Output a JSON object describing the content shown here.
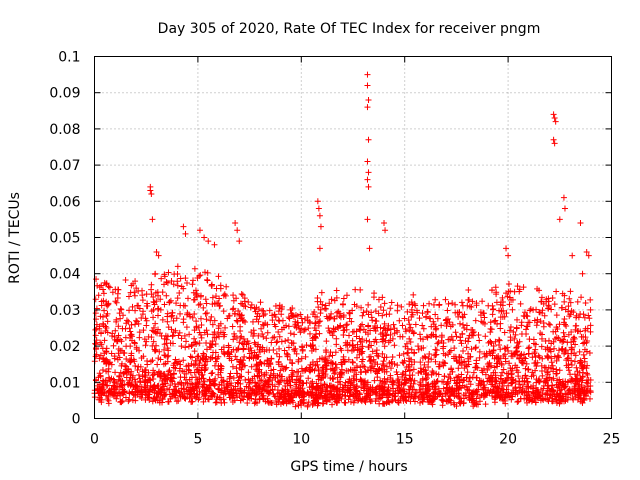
{
  "chart_data": {
    "type": "scatter",
    "title": "Day 305 of 2020, Rate Of TEC Index for receiver pngm",
    "xlabel": "GPS time / hours",
    "ylabel": "ROTI / TECUs",
    "xlim": [
      0,
      25
    ],
    "ylim": [
      0,
      0.1
    ],
    "x_ticks": [
      0,
      5,
      10,
      15,
      20,
      25
    ],
    "x_tick_labels": [
      "0",
      "5",
      "10",
      "15",
      "20",
      "25"
    ],
    "y_ticks": [
      0,
      0.01,
      0.02,
      0.03,
      0.04,
      0.05,
      0.06,
      0.07,
      0.08,
      0.09,
      0.1
    ],
    "y_tick_labels": [
      "0",
      "0.01",
      "0.02",
      "0.03",
      "0.04",
      "0.05",
      "0.06",
      "0.07",
      "0.08",
      "0.09",
      "0.1"
    ],
    "grid": true,
    "marker": "+",
    "color": "#ff0000",
    "series_note": "dense background of ROTI values between about 0.003 and 0.035 TECU spanning 0 to 24 h",
    "background": {
      "x_range": [
        0,
        24
      ],
      "profile": [
        {
          "x": 0,
          "base": 0.004,
          "peak": 0.038
        },
        {
          "x": 2,
          "base": 0.004,
          "peak": 0.035
        },
        {
          "x": 4,
          "base": 0.004,
          "peak": 0.04
        },
        {
          "x": 6,
          "base": 0.004,
          "peak": 0.037
        },
        {
          "x": 8,
          "base": 0.004,
          "peak": 0.03
        },
        {
          "x": 10,
          "base": 0.003,
          "peak": 0.028
        },
        {
          "x": 12,
          "base": 0.004,
          "peak": 0.035
        },
        {
          "x": 14,
          "base": 0.004,
          "peak": 0.032
        },
        {
          "x": 16,
          "base": 0.004,
          "peak": 0.03
        },
        {
          "x": 18,
          "base": 0.003,
          "peak": 0.033
        },
        {
          "x": 20,
          "base": 0.004,
          "peak": 0.035
        },
        {
          "x": 22,
          "base": 0.004,
          "peak": 0.033
        },
        {
          "x": 24,
          "base": 0.004,
          "peak": 0.03
        }
      ]
    },
    "notable_points": [
      {
        "x": 2.7,
        "y": 0.064
      },
      {
        "x": 2.7,
        "y": 0.063
      },
      {
        "x": 2.75,
        "y": 0.062
      },
      {
        "x": 2.8,
        "y": 0.055
      },
      {
        "x": 3.0,
        "y": 0.046
      },
      {
        "x": 3.1,
        "y": 0.045
      },
      {
        "x": 4.3,
        "y": 0.053
      },
      {
        "x": 4.4,
        "y": 0.051
      },
      {
        "x": 5.1,
        "y": 0.052
      },
      {
        "x": 5.3,
        "y": 0.05
      },
      {
        "x": 5.5,
        "y": 0.049
      },
      {
        "x": 5.8,
        "y": 0.048
      },
      {
        "x": 6.8,
        "y": 0.054
      },
      {
        "x": 6.9,
        "y": 0.052
      },
      {
        "x": 7.0,
        "y": 0.049
      },
      {
        "x": 10.8,
        "y": 0.06
      },
      {
        "x": 10.85,
        "y": 0.058
      },
      {
        "x": 10.9,
        "y": 0.056
      },
      {
        "x": 10.95,
        "y": 0.053
      },
      {
        "x": 10.9,
        "y": 0.047
      },
      {
        "x": 13.2,
        "y": 0.095
      },
      {
        "x": 13.2,
        "y": 0.092
      },
      {
        "x": 13.25,
        "y": 0.088
      },
      {
        "x": 13.2,
        "y": 0.086
      },
      {
        "x": 13.25,
        "y": 0.077
      },
      {
        "x": 13.2,
        "y": 0.071
      },
      {
        "x": 13.25,
        "y": 0.068
      },
      {
        "x": 13.2,
        "y": 0.066
      },
      {
        "x": 13.25,
        "y": 0.064
      },
      {
        "x": 13.2,
        "y": 0.055
      },
      {
        "x": 13.3,
        "y": 0.047
      },
      {
        "x": 14.0,
        "y": 0.054
      },
      {
        "x": 14.05,
        "y": 0.052
      },
      {
        "x": 19.9,
        "y": 0.047
      },
      {
        "x": 20.0,
        "y": 0.045
      },
      {
        "x": 22.2,
        "y": 0.084
      },
      {
        "x": 22.25,
        "y": 0.083
      },
      {
        "x": 22.3,
        "y": 0.082
      },
      {
        "x": 22.2,
        "y": 0.077
      },
      {
        "x": 22.25,
        "y": 0.076
      },
      {
        "x": 22.5,
        "y": 0.055
      },
      {
        "x": 22.7,
        "y": 0.061
      },
      {
        "x": 22.75,
        "y": 0.058
      },
      {
        "x": 23.1,
        "y": 0.045
      },
      {
        "x": 23.5,
        "y": 0.054
      },
      {
        "x": 23.8,
        "y": 0.046
      },
      {
        "x": 23.9,
        "y": 0.045
      },
      {
        "x": 23.6,
        "y": 0.04
      }
    ]
  }
}
